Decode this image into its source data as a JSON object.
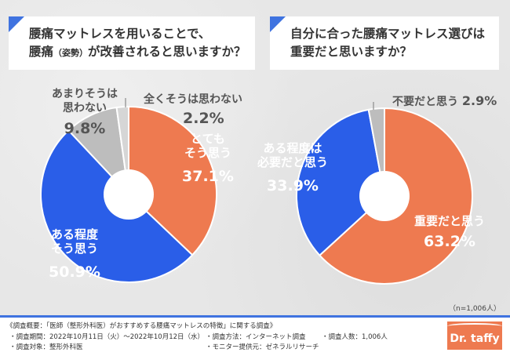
{
  "questions": [
    {
      "line1": "腰痛マットレスを用いることで、",
      "line2a": "腰痛",
      "line2b": "（姿勢）",
      "line2c": "が改善されると思いますか？"
    },
    {
      "line1": "自分に合った腰痛マットレス選びは",
      "line2": "重要だと思いますか？"
    }
  ],
  "chart_data": [
    {
      "type": "pie",
      "style": "donut",
      "categories": [
        "とてもそう思う",
        "ある程度そう思う",
        "あまりそうは思わない",
        "全くそうは思わない"
      ],
      "values": [
        37.1,
        50.9,
        9.8,
        2.2
      ],
      "colors": [
        "#ee7a50",
        "#2a5ee8",
        "#bdbdbd",
        "#d6d6d6"
      ],
      "labels": [
        {
          "l1": "とても",
          "l2": "そう思う",
          "pct": "37.1%"
        },
        {
          "l1": "ある程度",
          "l2": "そう思う",
          "pct": "50.9%"
        },
        {
          "l1": "あまりそうは",
          "l2": "思わない",
          "pct": "9.8%"
        },
        {
          "l1": "全くそうは思わない",
          "pct": "2.2%"
        }
      ]
    },
    {
      "type": "pie",
      "style": "donut",
      "categories": [
        "重要だと思う",
        "ある程度は必要だと思う",
        "不要だと思う"
      ],
      "values": [
        63.2,
        33.9,
        2.9
      ],
      "colors": [
        "#ee7a50",
        "#2a5ee8",
        "#bdbdbd"
      ],
      "labels": [
        {
          "l1": "重要だと思う",
          "pct": "63.2%"
        },
        {
          "l1": "ある程度は",
          "l2": "必要だと思う",
          "pct": "33.9%"
        },
        {
          "l1": "不要だと思う",
          "pct": "2.9%"
        }
      ]
    }
  ],
  "sample": "（n=1,006人）",
  "footer": {
    "title": "《調査概要：「医師（整形外科医）がおすすめする腰痛マットレスの特徴」に関する調査》",
    "period": "・調査期間：2022年10月11日（火）～2022年10月12日（水）",
    "method": "・調査方法：インターネット調査",
    "count": "・調査人数：1,006人",
    "target": "・調査対象：整形外科医",
    "provider": "・モニター提供元：ゼネラルリサーチ"
  },
  "logo": "Dr. taffy"
}
